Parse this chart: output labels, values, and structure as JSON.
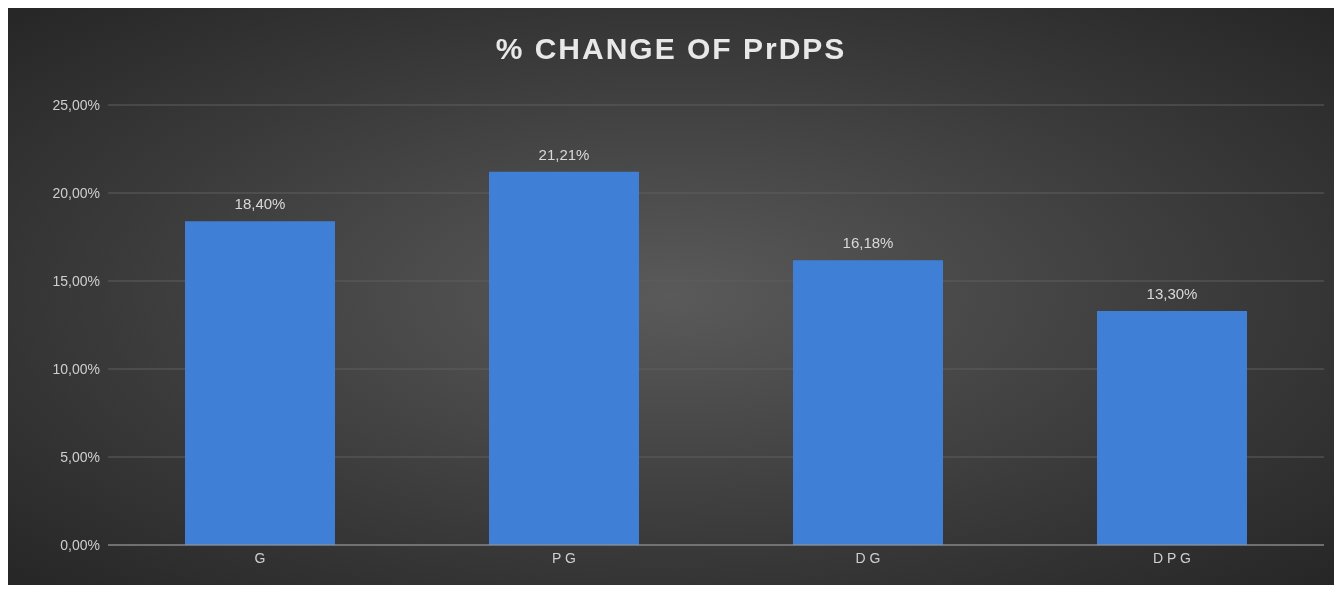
{
  "chart_data": {
    "type": "bar",
    "title": "% CHANGE OF PrDPS",
    "categories": [
      "G",
      "P G",
      "D G",
      "D P G"
    ],
    "values": [
      18.4,
      21.21,
      16.18,
      13.3
    ],
    "value_labels": [
      "18,40%",
      "21,21%",
      "16,18%",
      "13,30%"
    ],
    "color": "#3f80d6",
    "ylim": [
      0,
      25
    ],
    "yticks": [
      {
        "value": 0,
        "label": "0,00%"
      },
      {
        "value": 5,
        "label": "5,00%"
      },
      {
        "value": 10,
        "label": "10,00%"
      },
      {
        "value": 15,
        "label": "15,00%"
      },
      {
        "value": 20,
        "label": "20,00%"
      },
      {
        "value": 25,
        "label": "25,00%"
      }
    ],
    "grid": "y"
  }
}
